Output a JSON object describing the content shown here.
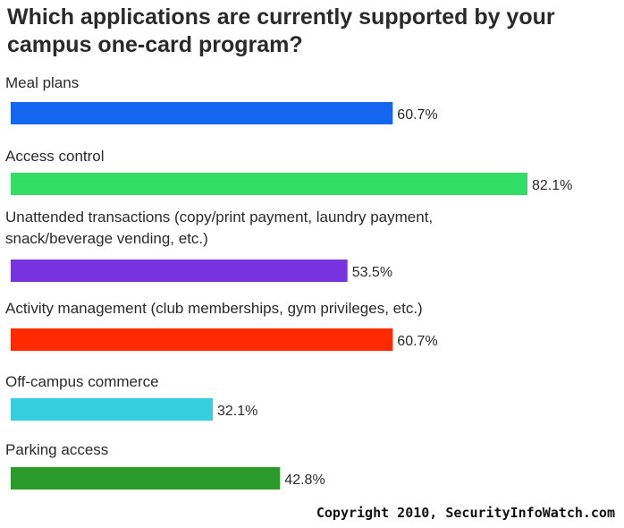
{
  "chart_data": {
    "type": "bar",
    "orientation": "horizontal",
    "title": "Which applications are currently supported by your campus one-card program?",
    "categories": [
      [
        "Meal plans"
      ],
      [
        "Access control"
      ],
      [
        "Unattended transactions (copy/print payment, laundry payment,",
        "snack/beverage vending, etc.)"
      ],
      [
        "Activity management (club memberships, gym privileges, etc.)"
      ],
      [
        "Off-campus commerce"
      ],
      [
        "Parking access"
      ]
    ],
    "values": [
      60.7,
      82.1,
      53.5,
      60.7,
      32.1,
      42.8
    ],
    "value_labels": [
      "60.7%",
      "82.1%",
      "53.5%",
      "60.7%",
      "32.1%",
      "42.8%"
    ],
    "colors": [
      "#1466f0",
      "#33dd66",
      "#7733dd",
      "#ff2a00",
      "#33cfdf",
      "#2a9a2a"
    ],
    "xlim": [
      0,
      100
    ],
    "grid": false,
    "legend": "none"
  },
  "footer": {
    "copyright": "Copyright 2010, SecurityInfoWatch.com"
  }
}
